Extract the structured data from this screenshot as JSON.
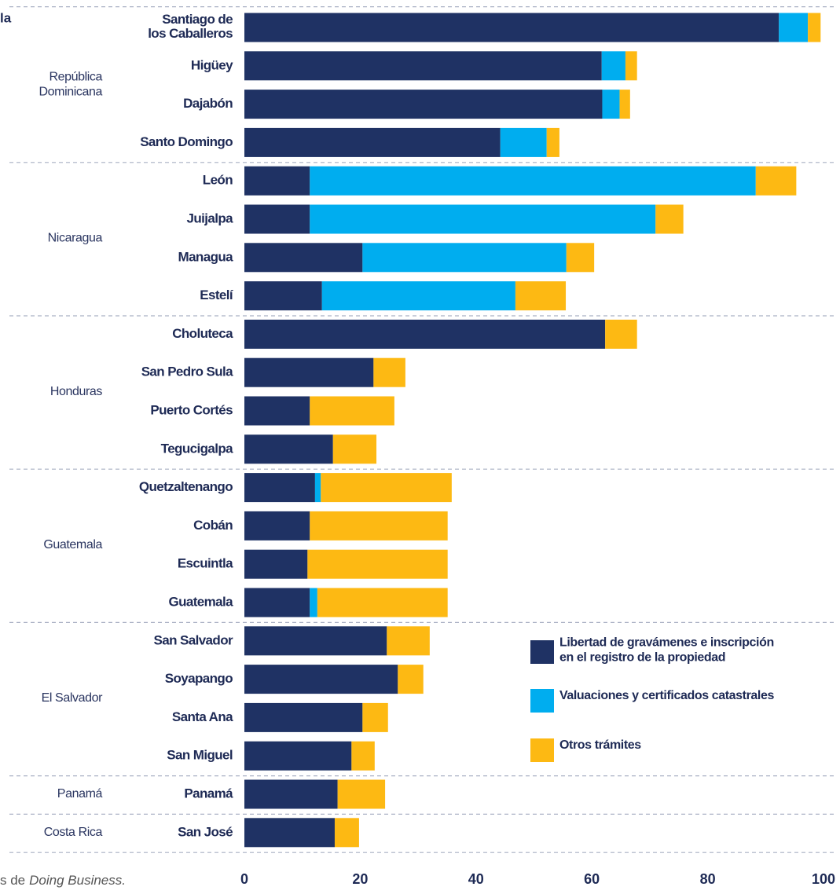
{
  "chart_data": {
    "type": "stacked_barh",
    "title": "la",
    "source": {
      "text": "s de",
      "emphasis": "Doing Business."
    },
    "groups": [
      {
        "name": "República\nDominicana",
        "categories": [
          "Santiago de\nlos Caballeros",
          "Higüey",
          "Dajabón",
          "Santo Domingo"
        ]
      },
      {
        "name": "Nicaragua",
        "categories": [
          "León",
          "Juijalpa",
          "Managua",
          "Estelí"
        ]
      },
      {
        "name": "Honduras",
        "categories": [
          "Choluteca",
          "San Pedro Sula",
          "Puerto Cortés",
          "Tegucigalpa"
        ]
      },
      {
        "name": "Guatemala",
        "categories": [
          "Quetzaltenango",
          "Cobán",
          "Escuintla",
          "Guatemala"
        ]
      },
      {
        "name": "El Salvador",
        "categories": [
          "San Salvador",
          "Soyapango",
          "Santa Ana",
          "San Miguel"
        ]
      },
      {
        "name": "Panamá",
        "categories": [
          "Panamá"
        ]
      },
      {
        "name": "Costa Rica",
        "categories": [
          "San José"
        ]
      }
    ],
    "series": [
      {
        "name": "Libertad de gravámenes e inscripción\nen el registro de la propiedad",
        "color": "#1f3264",
        "values": [
          92.3,
          61.7,
          61.8,
          44.2,
          11.3,
          11.3,
          20.4,
          13.4,
          62.3,
          22.3,
          11.3,
          15.3,
          12.2,
          11.3,
          10.9,
          11.3,
          24.6,
          26.5,
          20.4,
          18.5,
          16.1,
          15.6
        ]
      },
      {
        "name": "Valuaciones y certificados catastrales",
        "color": "#00adef",
        "values": [
          5,
          4.1,
          3,
          8,
          77,
          59.7,
          35.2,
          33.4,
          0,
          0,
          0,
          0,
          1,
          0,
          0,
          1.3,
          0,
          0,
          0,
          0,
          0,
          0
        ]
      },
      {
        "name": "Otros trámites",
        "color": "#fdb913",
        "values": [
          2.2,
          2,
          1.8,
          2.2,
          7,
          4.8,
          4.8,
          8.7,
          5.5,
          5.5,
          14.6,
          7.5,
          22.6,
          23.8,
          24.2,
          22.5,
          7.4,
          4.4,
          4.4,
          4,
          8.2,
          4.2
        ]
      }
    ],
    "xlim": [
      0,
      100
    ],
    "xticks": [
      0,
      20,
      40,
      60,
      80,
      100
    ]
  }
}
